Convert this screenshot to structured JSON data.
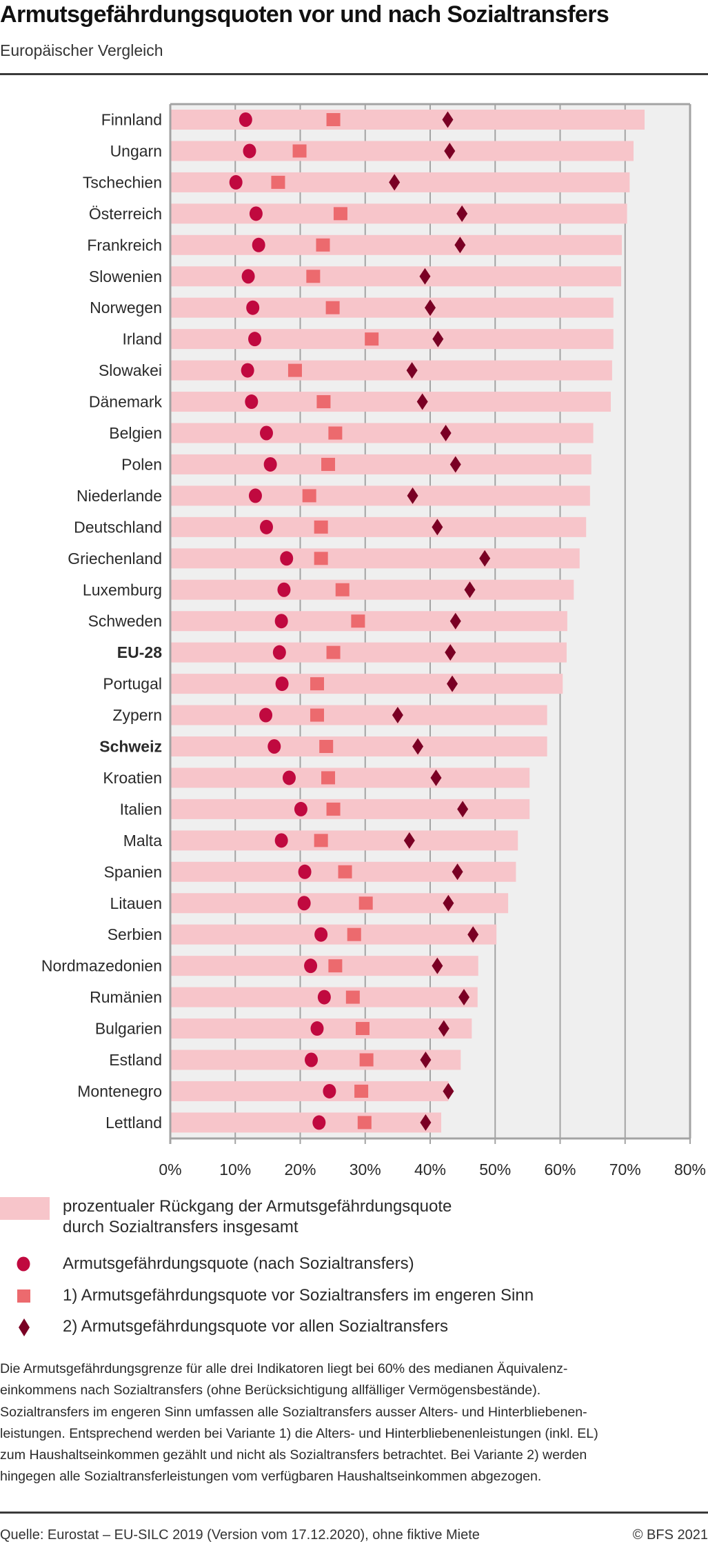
{
  "header": {
    "title": "Armutsgefährdungsquoten vor und nach Sozialtransfers",
    "subtitle": "Europäischer Vergleich"
  },
  "colors": {
    "bar": "#f7c5ca",
    "plot_background": "#efefef",
    "grid": "#a3a3a3",
    "circle": "#c0093f",
    "square": "#ec6a6e",
    "diamond": "#7a0024"
  },
  "chart_data": {
    "type": "bar",
    "orientation": "horizontal",
    "title": "Armutsgefährdungsquoten vor und nach Sozialtransfers",
    "subtitle": "Europäischer Vergleich",
    "xlabel": "",
    "ylabel": "",
    "xlim": [
      0,
      80
    ],
    "x_ticks": [
      0,
      10,
      20,
      30,
      40,
      50,
      60,
      70,
      80
    ],
    "x_tick_labels": [
      "0%",
      "10%",
      "20%",
      "30%",
      "40%",
      "50%",
      "60%",
      "70%",
      "80%"
    ],
    "grid": true,
    "legend_position": "bottom",
    "bold_categories": [
      "EU-28",
      "Schweiz"
    ],
    "categories": [
      "Finnland",
      "Ungarn",
      "Tschechien",
      "Österreich",
      "Frankreich",
      "Slowenien",
      "Norwegen",
      "Irland",
      "Slowakei",
      "Dänemark",
      "Belgien",
      "Polen",
      "Niederlande",
      "Deutschland",
      "Griechenland",
      "Luxemburg",
      "Schweden",
      "EU-28",
      "Portugal",
      "Zypern",
      "Schweiz",
      "Kroatien",
      "Italien",
      "Malta",
      "Spanien",
      "Litauen",
      "Serbien",
      "Nordmazedonien",
      "Rumänien",
      "Bulgarien",
      "Estland",
      "Montenegro",
      "Lettland"
    ],
    "series": [
      {
        "name": "prozentualer Rückgang der Armutsgefährdungsquote durch Sozialtransfers insgesamt",
        "mark": "bar",
        "values": [
          73.0,
          71.3,
          70.7,
          70.3,
          69.5,
          69.4,
          68.2,
          68.2,
          68.0,
          67.8,
          65.1,
          64.8,
          64.6,
          64.0,
          63.0,
          62.1,
          61.1,
          61.0,
          60.4,
          58.0,
          58.0,
          55.3,
          55.3,
          53.5,
          53.2,
          52.0,
          50.2,
          47.4,
          47.3,
          46.4,
          44.7,
          42.8,
          41.7
        ]
      },
      {
        "name": "Armutsgefährdungsquote (nach Sozialtransfers)",
        "mark": "circle",
        "values": [
          11.6,
          12.2,
          10.1,
          13.2,
          13.6,
          12.0,
          12.7,
          13.0,
          11.9,
          12.5,
          14.8,
          15.4,
          13.1,
          14.8,
          17.9,
          17.5,
          17.1,
          16.8,
          17.2,
          14.7,
          16.0,
          18.3,
          20.1,
          17.1,
          20.7,
          20.6,
          23.2,
          21.6,
          23.7,
          22.6,
          21.7,
          24.5,
          22.9
        ]
      },
      {
        "name": "1) Armutsgefährdungsquote vor Sozialtransfers im engeren Sinn",
        "mark": "square",
        "values": [
          25.1,
          19.9,
          16.6,
          26.2,
          23.5,
          22.0,
          25.0,
          31.0,
          19.2,
          23.6,
          25.4,
          24.3,
          21.4,
          23.2,
          23.2,
          26.5,
          28.9,
          25.1,
          22.6,
          22.6,
          24.0,
          24.3,
          25.1,
          23.2,
          26.9,
          30.1,
          28.3,
          25.4,
          28.1,
          29.6,
          30.2,
          29.4,
          29.9
        ]
      },
      {
        "name": "2) Armutsgefährdungsquote vor allen Sozialtransfers",
        "mark": "diamond",
        "values": [
          42.7,
          43.0,
          34.5,
          44.9,
          44.6,
          39.2,
          40.0,
          41.2,
          37.2,
          38.8,
          42.4,
          43.9,
          37.3,
          41.1,
          48.4,
          46.1,
          43.9,
          43.1,
          43.4,
          35.0,
          38.1,
          40.9,
          45.0,
          36.8,
          44.2,
          42.8,
          46.6,
          41.1,
          45.2,
          42.1,
          39.3,
          42.8,
          39.3
        ]
      }
    ]
  },
  "legend": {
    "bar_line1": "prozentualer Rückgang der Armutsgefährdungsquote",
    "bar_line2": "durch Sozialtransfers insgesamt",
    "circle": "Armutsgefährdungsquote (nach Sozialtransfers)",
    "square": "1) Armutsgefährdungsquote vor Sozialtransfers im engeren Sinn",
    "diamond": "2) Armutsgefährdungsquote vor allen Sozialtransfers"
  },
  "note_lines": [
    "Die Armutsgefährdungsgrenze für alle drei Indikatoren liegt bei 60% des medianen Äquivalenz-",
    "einkommens nach Sozialtransfers (ohne Berücksichtigung allfälliger Vermögensbestände).",
    "Sozialtransfers im engeren Sinn umfassen alle Sozialtransfers ausser Alters- und Hinterbliebenen-",
    "leistungen. Entsprechend werden bei Variante 1) die Alters- und Hinterbliebenenleistungen (inkl. EL)",
    "zum Haushaltseinkommen gezählt und nicht als Sozialtransfers betrachtet. Bei Variante 2) werden",
    "hingegen alle Sozialtransferleistungen vom verfügbaren Haushaltseinkommen abgezogen."
  ],
  "footer": {
    "source": "Quelle: Eurostat – EU-SILC 2019 (Version vom 17.12.2020), ohne fiktive Miete",
    "copyright": "© BFS 2021"
  }
}
